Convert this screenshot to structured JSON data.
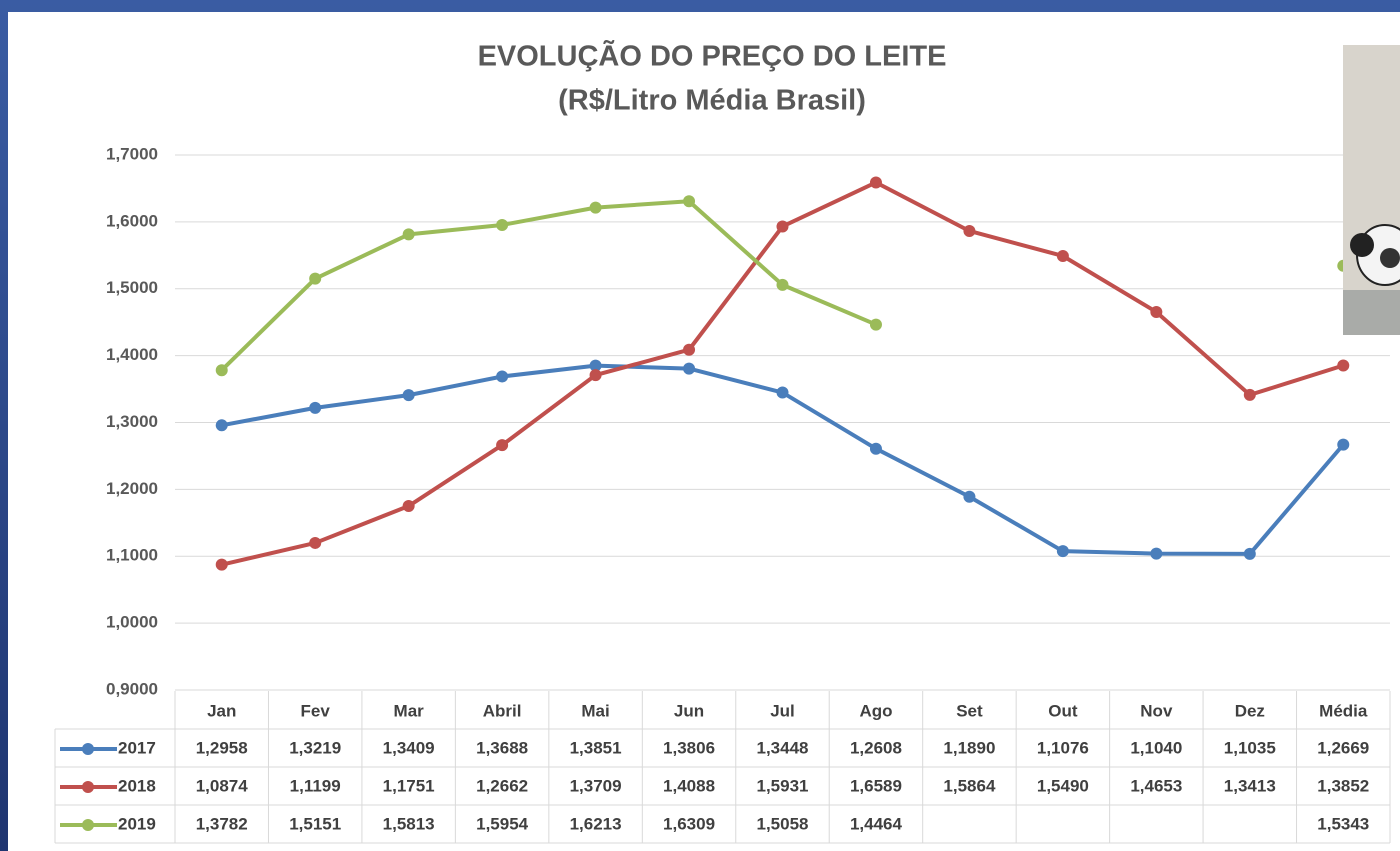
{
  "chart_data": {
    "type": "line",
    "title": "EVOLUÇÃO DO PREÇO DO LEITE",
    "subtitle": "(R$/Litro Média Brasil)",
    "categories": [
      "Jan",
      "Fev",
      "Mar",
      "Abril",
      "Mai",
      "Jun",
      "Jul",
      "Ago",
      "Set",
      "Out",
      "Nov",
      "Dez",
      "Média"
    ],
    "series": [
      {
        "name": "2017",
        "color": "#4a7ebb",
        "values": [
          1.2958,
          1.3219,
          1.3409,
          1.3688,
          1.3851,
          1.3806,
          1.3448,
          1.2608,
          1.189,
          1.1076,
          1.104,
          1.1035,
          1.2669
        ],
        "value_labels": [
          "1,2958",
          "1,3219",
          "1,3409",
          "1,3688",
          "1,3851",
          "1,3806",
          "1,3448",
          "1,2608",
          "1,1890",
          "1,1076",
          "1,1040",
          "1,1035",
          "1,2669"
        ]
      },
      {
        "name": "2018",
        "color": "#c0504d",
        "values": [
          1.0874,
          1.1199,
          1.1751,
          1.2662,
          1.3709,
          1.4088,
          1.5931,
          1.6589,
          1.5864,
          1.549,
          1.4653,
          1.3413,
          1.3852
        ],
        "value_labels": [
          "1,0874",
          "1,1199",
          "1,1751",
          "1,2662",
          "1,3709",
          "1,4088",
          "1,5931",
          "1,6589",
          "1,5864",
          "1,5490",
          "1,4653",
          "1,3413",
          "1,3852"
        ]
      },
      {
        "name": "2019",
        "color": "#9bbb59",
        "values": [
          1.3782,
          1.5151,
          1.5813,
          1.5954,
          1.6213,
          1.6309,
          1.5058,
          1.4464,
          null,
          null,
          null,
          null,
          1.5343
        ],
        "value_labels": [
          "1,3782",
          "1,5151",
          "1,5813",
          "1,5954",
          "1,6213",
          "1,6309",
          "1,5058",
          "1,4464",
          null,
          null,
          null,
          null,
          "1,5343"
        ]
      }
    ],
    "ylim": [
      0.9,
      1.7
    ],
    "yticks": [
      {
        "value": 0.9,
        "label": "0,9000"
      },
      {
        "value": 1.0,
        "label": "1,0000"
      },
      {
        "value": 1.1,
        "label": "1,1000"
      },
      {
        "value": 1.2,
        "label": "1,2000"
      },
      {
        "value": 1.3,
        "label": "1,3000"
      },
      {
        "value": 1.4,
        "label": "1,4000"
      },
      {
        "value": 1.5,
        "label": "1,5000"
      },
      {
        "value": 1.6,
        "label": "1,6000"
      },
      {
        "value": 1.7,
        "label": "1,7000"
      }
    ],
    "grid": true
  }
}
